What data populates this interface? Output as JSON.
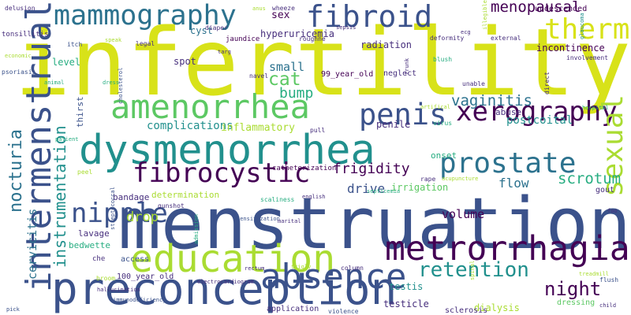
{
  "colors": {
    "background": "#ffffff",
    "palette": [
      "#440154",
      "#472f7d",
      "#3b528b",
      "#2c728e",
      "#21908d",
      "#27ad81",
      "#5cc863",
      "#aadc32",
      "#d8e219"
    ]
  },
  "words": [
    {
      "text": "infertility",
      "color": "#d8e219"
    },
    {
      "text": "menstruation",
      "color": "#3b528b"
    },
    {
      "text": "dysmenorrhea",
      "color": "#21908d"
    },
    {
      "text": "preconception",
      "color": "#3b528b"
    },
    {
      "text": "education",
      "color": "#aadc32"
    },
    {
      "text": "intermenstrual",
      "color": "#3b528b"
    },
    {
      "text": "amenorrhea",
      "color": "#5cc863"
    },
    {
      "text": "mammography",
      "color": "#2c728e"
    },
    {
      "text": "absence",
      "color": "#3b528b"
    },
    {
      "text": "metrorrhagia",
      "color": "#440154"
    },
    {
      "text": "prostate",
      "color": "#2c728e"
    },
    {
      "text": "fibroid",
      "color": "#3b528b"
    },
    {
      "text": "penis",
      "color": "#3b528b"
    },
    {
      "text": "xerography",
      "color": "#440154"
    },
    {
      "text": "fibrocystic",
      "color": "#440154"
    },
    {
      "text": "sexual",
      "color": "#aadc32"
    },
    {
      "text": "therm",
      "color": "#d8e219"
    },
    {
      "text": "nipple",
      "color": "#3b528b"
    },
    {
      "text": "nocturia",
      "color": "#2c728e"
    },
    {
      "text": "instrumentation",
      "color": "#21908d"
    },
    {
      "text": "retention",
      "color": "#21908d"
    },
    {
      "text": "night",
      "color": "#440154"
    },
    {
      "text": "cervicitis",
      "color": "#2c728e"
    },
    {
      "text": "menopausal",
      "color": "#440154"
    },
    {
      "text": "vaginitis",
      "color": "#2c728e"
    },
    {
      "text": "scrotum",
      "color": "#27ad81"
    },
    {
      "text": "cat",
      "color": "#5cc863"
    },
    {
      "text": "bump",
      "color": "#27ad81"
    },
    {
      "text": "frigidity",
      "color": "#440154"
    },
    {
      "text": "flow",
      "color": "#2c728e"
    },
    {
      "text": "drive",
      "color": "#3b528b"
    },
    {
      "text": "drop",
      "color": "#aadc32"
    },
    {
      "text": "volume",
      "color": "#440154"
    },
    {
      "text": "sex",
      "color": "#440154"
    },
    {
      "text": "small",
      "color": "#2c728e"
    },
    {
      "text": "complications",
      "color": "#21908d"
    },
    {
      "text": "inflammatory",
      "color": "#aadc32"
    },
    {
      "text": "postcoital",
      "color": "#21908d"
    },
    {
      "text": "irrigation",
      "color": "#5cc863"
    },
    {
      "text": "incontinence",
      "color": "#440154"
    },
    {
      "text": "radiation",
      "color": "#472f7d"
    },
    {
      "text": "hyperuricemia",
      "color": "#472f7d"
    },
    {
      "text": "cyst",
      "color": "#2c728e"
    },
    {
      "text": "spot",
      "color": "#472f7d"
    },
    {
      "text": "level",
      "color": "#27ad81"
    },
    {
      "text": "lavage",
      "color": "#472f7d"
    },
    {
      "text": "bedwette",
      "color": "#27ad81"
    },
    {
      "text": "determination",
      "color": "#aadc32"
    },
    {
      "text": "bandage",
      "color": "#472f7d"
    },
    {
      "text": "dialysis",
      "color": "#aadc32"
    },
    {
      "text": "testicle",
      "color": "#472f7d"
    },
    {
      "text": "sclerosis",
      "color": "#472f7d"
    },
    {
      "text": "application",
      "color": "#472f7d"
    },
    {
      "text": "onset",
      "color": "#27ad81"
    },
    {
      "text": "abuse",
      "color": "#472f7d"
    },
    {
      "text": "penile",
      "color": "#472f7d"
    },
    {
      "text": "testis",
      "color": "#21908d"
    },
    {
      "text": "thirst",
      "color": "#3b528b"
    },
    {
      "text": "undescended",
      "color": "#440154"
    },
    {
      "text": "gout",
      "color": "#472f7d"
    },
    {
      "text": "dressing",
      "color": "#5cc863"
    },
    {
      "text": "neglect",
      "color": "#472f7d"
    },
    {
      "text": "99_year_old",
      "color": "#440154"
    },
    {
      "text": "100_year_old",
      "color": "#472f7d"
    },
    {
      "text": "che",
      "color": "#472f7d"
    },
    {
      "text": "access",
      "color": "#3b528b"
    },
    {
      "text": "catheterization",
      "color": "#440154"
    },
    {
      "text": "tonsillitis",
      "color": "#472f7d"
    },
    {
      "text": "delusion",
      "color": "#472f7d"
    },
    {
      "text": "psoriasis",
      "color": "#3b528b"
    },
    {
      "text": "itch",
      "color": "#3b528b"
    },
    {
      "text": "legal",
      "color": "#472f7d"
    },
    {
      "text": "jaundice",
      "color": "#440154"
    },
    {
      "text": "diaper",
      "color": "#472f7d"
    },
    {
      "text": "roughne",
      "color": "#472f7d"
    },
    {
      "text": "navel",
      "color": "#472f7d"
    },
    {
      "text": "blush",
      "color": "#27ad81"
    },
    {
      "text": "deformity",
      "color": "#472f7d"
    },
    {
      "text": "external",
      "color": "#472f7d"
    },
    {
      "text": "involvement",
      "color": "#472f7d"
    },
    {
      "text": "glaucoma",
      "color": "#21908d"
    },
    {
      "text": "illegible",
      "color": "#aadc32"
    },
    {
      "text": "unable",
      "color": "#472f7d"
    },
    {
      "text": "hospital",
      "color": "#27ad81"
    },
    {
      "text": "direct",
      "color": "#472f7d"
    },
    {
      "text": "virus",
      "color": "#27ad81"
    },
    {
      "text": "rape",
      "color": "#472f7d"
    },
    {
      "text": "acupuncture",
      "color": "#aadc32"
    },
    {
      "text": "septicemia",
      "color": "#27ad81"
    },
    {
      "text": "english",
      "color": "#472f7d"
    },
    {
      "text": "scaliness",
      "color": "#27ad81"
    },
    {
      "text": "sensitization",
      "color": "#3b528b"
    },
    {
      "text": "marital",
      "color": "#472f7d"
    },
    {
      "text": "trigly",
      "color": "#aadc32"
    },
    {
      "text": "column",
      "color": "#472f7d"
    },
    {
      "text": "rectum",
      "color": "#472f7d"
    },
    {
      "text": "spinal",
      "color": "#aadc32"
    },
    {
      "text": "treadmill",
      "color": "#aadc32"
    },
    {
      "text": "flush",
      "color": "#3b528b"
    },
    {
      "text": "child",
      "color": "#472f7d"
    },
    {
      "text": "immunodeficiency",
      "color": "#3b528b"
    },
    {
      "text": "violence",
      "color": "#3b528b"
    },
    {
      "text": "electrocardiogram",
      "color": "#472f7d"
    },
    {
      "text": "hallucination",
      "color": "#472f7d"
    },
    {
      "text": "broom",
      "color": "#aadc32"
    },
    {
      "text": "pick",
      "color": "#3b528b"
    },
    {
      "text": "peel",
      "color": "#aadc32"
    },
    {
      "text": "streptococcal",
      "color": "#3b528b"
    },
    {
      "text": "gunshot",
      "color": "#472f7d"
    },
    {
      "text": "admission",
      "color": "#27ad81"
    },
    {
      "text": "cholesterol",
      "color": "#3b528b"
    },
    {
      "text": "patient",
      "color": "#27ad81"
    },
    {
      "text": "dress",
      "color": "#27ad81"
    },
    {
      "text": "animal",
      "color": "#27ad81"
    },
    {
      "text": "targ",
      "color": "#472f7d"
    },
    {
      "text": "speak",
      "color": "#aadc32"
    },
    {
      "text": "economic",
      "color": "#aadc32"
    },
    {
      "text": "anus",
      "color": "#aadc32"
    },
    {
      "text": "wheeze",
      "color": "#472f7d"
    },
    {
      "text": "sepsis",
      "color": "#472f7d"
    },
    {
      "text": "trunk",
      "color": "#472f7d"
    },
    {
      "text": "pull",
      "color": "#472f7d"
    },
    {
      "text": "artifical",
      "color": "#aadc32"
    },
    {
      "text": "ecg",
      "color": "#472f7d"
    },
    {
      "text": "foo",
      "color": "#472f7d"
    }
  ]
}
